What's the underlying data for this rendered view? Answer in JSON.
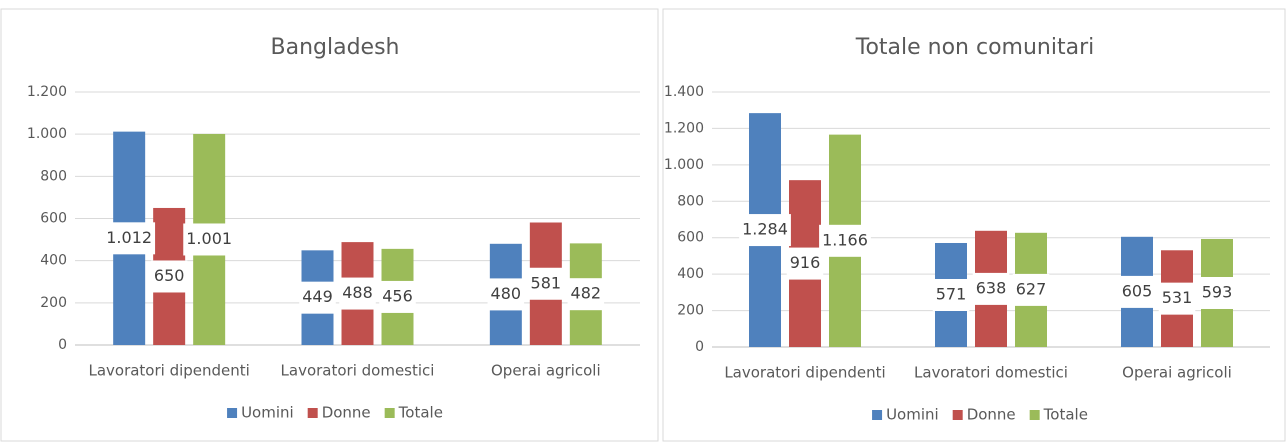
{
  "chart_data": [
    {
      "type": "bar",
      "title": "Bangladesh",
      "categories": [
        "Lavoratori dipendenti",
        "Lavoratori domestici",
        "Operai agricoli"
      ],
      "series": [
        {
          "name": "Uomini",
          "color": "#4f81bd",
          "values": [
            1012,
            449,
            480
          ],
          "value_labels": [
            "1.012",
            "449",
            "480"
          ]
        },
        {
          "name": "Donne",
          "color": "#c0504d",
          "values": [
            650,
            488,
            581
          ]
        },
        {
          "name": "Totale",
          "color": "#9bbb59",
          "values": [
            1001,
            456,
            482
          ],
          "value_labels": [
            "1.001",
            "456",
            "482"
          ]
        }
      ],
      "ylim": [
        0,
        1200
      ],
      "yticks": [
        0,
        200,
        400,
        600,
        800,
        {
          "value": 1000,
          "label": "1.000"
        },
        {
          "value": 1200,
          "label": "1.200"
        }
      ],
      "grid": true,
      "legend": "bottom"
    },
    {
      "type": "bar",
      "title": "Totale non comunitari",
      "categories": [
        "Lavoratori dipendenti",
        "Lavoratori domestici",
        "Operai agricoli"
      ],
      "series": [
        {
          "name": "Uomini",
          "color": "#4f81bd",
          "values": [
            1284,
            571,
            605
          ],
          "value_labels": [
            "1.284",
            "571",
            "605"
          ]
        },
        {
          "name": "Donne",
          "color": "#c0504d",
          "values": [
            916,
            638,
            531
          ]
        },
        {
          "name": "Totale",
          "color": "#9bbb59",
          "values": [
            1166,
            627,
            593
          ],
          "value_labels": [
            "1.166",
            "627",
            "593"
          ]
        }
      ],
      "ylim": [
        0,
        1400
      ],
      "yticks": [
        0,
        200,
        400,
        600,
        800,
        {
          "value": 1000,
          "label": "1.000"
        },
        {
          "value": 1200,
          "label": "1.200"
        },
        {
          "value": 1400,
          "label": "1.400"
        }
      ],
      "grid": true,
      "legend": "bottom"
    }
  ]
}
